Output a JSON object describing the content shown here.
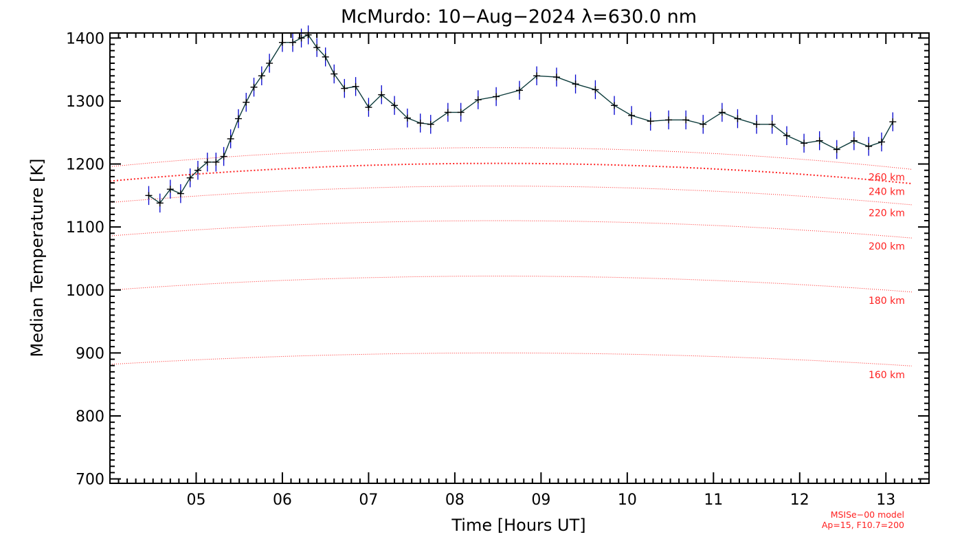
{
  "chart_data": {
    "type": "line",
    "title": "McMurdo: 10−Aug−2024 λ=630.0 nm",
    "xlabel": "Time [Hours UT]",
    "ylabel": "Median Temperature [K]",
    "xlim": [
      4.0,
      13.5
    ],
    "ylim": [
      693,
      1408
    ],
    "x_ticks": [
      5,
      6,
      7,
      8,
      9,
      10,
      11,
      12,
      13
    ],
    "x_tick_labels": [
      "05",
      "06",
      "07",
      "08",
      "09",
      "10",
      "11",
      "12",
      "13"
    ],
    "y_ticks": [
      700,
      800,
      900,
      1000,
      1100,
      1200,
      1300,
      1400
    ],
    "y_tick_labels": [
      "700",
      "800",
      "900",
      "1000",
      "1100",
      "1200",
      "1300",
      "1400"
    ],
    "grid": false,
    "series": [
      {
        "color": "#0000cc",
        "line_color": "#0b3a3a",
        "error": 15,
        "x": [
          4.45,
          4.58,
          4.7,
          4.82,
          4.93,
          5.02,
          5.13,
          5.23,
          5.32,
          5.4,
          5.49,
          5.58,
          5.67,
          5.76,
          5.85,
          6.0,
          6.12,
          6.22,
          6.3,
          6.4,
          6.5,
          6.6,
          6.72,
          6.85,
          7.0,
          7.15,
          7.3,
          7.45,
          7.6,
          7.72,
          7.92,
          8.07,
          8.27,
          8.48,
          8.75,
          8.95,
          9.18,
          9.4,
          9.63,
          9.85,
          10.05,
          10.27,
          10.48,
          10.68,
          10.88,
          11.1,
          11.28,
          11.5,
          11.68,
          11.85,
          12.05,
          12.23,
          12.43,
          12.63,
          12.8,
          12.95,
          13.08
        ],
        "y": [
          1150,
          1138,
          1160,
          1153,
          1178,
          1190,
          1203,
          1203,
          1212,
          1240,
          1272,
          1298,
          1322,
          1340,
          1360,
          1393,
          1393,
          1400,
          1405,
          1385,
          1370,
          1343,
          1320,
          1323,
          1290,
          1310,
          1293,
          1273,
          1265,
          1263,
          1282,
          1282,
          1302,
          1307,
          1317,
          1340,
          1338,
          1327,
          1318,
          1293,
          1277,
          1268,
          1270,
          1270,
          1263,
          1282,
          1272,
          1263,
          1263,
          1245,
          1233,
          1237,
          1223,
          1237,
          1228,
          1235,
          1267
        ]
      }
    ],
    "model_curves": [
      {
        "label": "160 km",
        "tmid": 900,
        "amp": 9
      },
      {
        "label": "180 km",
        "tmid": 1022,
        "amp": 11
      },
      {
        "label": "200 km",
        "tmid": 1110,
        "amp": 12
      },
      {
        "label": "220 km",
        "tmid": 1165,
        "amp": 13
      },
      {
        "label": "240 km",
        "tmid": 1201,
        "amp": 14,
        "highlight": true
      },
      {
        "label": "260 km",
        "tmid": 1226,
        "amp": 15
      }
    ],
    "model_color": "#ff2020",
    "annotation": [
      "MSISe−00 model",
      "Ap=15, F10.7=200"
    ]
  }
}
